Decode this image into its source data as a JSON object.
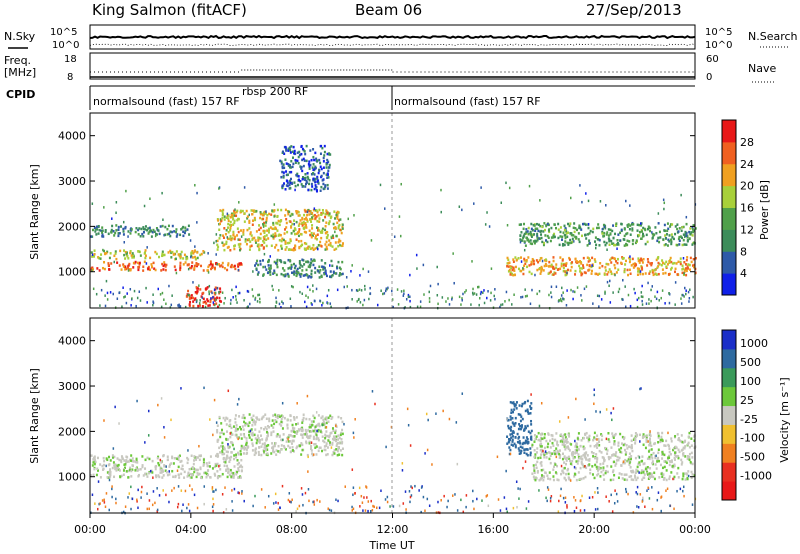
{
  "header": {
    "station": "King Salmon (fitACF)",
    "beam": "Beam 06",
    "date": "27/Sep/2013"
  },
  "nsky_panel": {
    "left_label": "N.Sky",
    "right_label": "N.Search",
    "left_ticks": [
      "10^5",
      "10^0"
    ],
    "right_ticks": [
      "10^5",
      "10^0"
    ]
  },
  "freq_panel": {
    "left_label_1": "Freq.",
    "left_label_2": "[MHz]",
    "right_label": "Nave",
    "left_ticks": [
      "18",
      "8"
    ],
    "right_ticks": [
      "60",
      "0"
    ]
  },
  "cpid_panel": {
    "label": "CPID",
    "segments": [
      {
        "text": "normalsound (fast) 157 RF",
        "start": 0,
        "end": 12
      },
      {
        "text": "rbsp 200 RF",
        "start": 6,
        "end": 12
      },
      {
        "text": "normalsound (fast) 157 RF",
        "start": 12,
        "end": 24
      }
    ]
  },
  "x_axis": {
    "label": "Time UT",
    "ticks": [
      "00:00",
      "04:00",
      "08:00",
      "12:00",
      "16:00",
      "20:00",
      "00:00"
    ]
  },
  "power_panel": {
    "ylabel": "Slant Range [km]",
    "yticks": [
      "1000",
      "2000",
      "3000",
      "4000"
    ],
    "colorbar_label": "Power [dB]",
    "colorbar_ticks": [
      "4",
      "8",
      "12",
      "16",
      "20",
      "24",
      "28"
    ],
    "colors": [
      "#1020e8",
      "#2e5aa8",
      "#3c8c5a",
      "#50a04a",
      "#a8d03a",
      "#f0a020",
      "#f06020",
      "#e81818"
    ]
  },
  "velocity_panel": {
    "ylabel": "Slant Range [km]",
    "yticks": [
      "1000",
      "2000",
      "3000",
      "4000"
    ],
    "colorbar_label": "Velocity [m s⁻¹]",
    "colorbar_ticks": [
      "1000",
      "500",
      "100",
      "25",
      "-25",
      "-100",
      "-500",
      "-1000"
    ],
    "colors": [
      "#1a2ec8",
      "#2e6aa0",
      "#3a9a5a",
      "#6cc83a",
      "#c8c8c0",
      "#f0c030",
      "#f08020",
      "#e83020",
      "#e81818"
    ]
  },
  "chart_data": {
    "type": "heatmap",
    "x_range_hours": [
      0,
      24
    ],
    "y_range_km": [
      200,
      4500
    ],
    "power_features_dB": [
      {
        "t": [
          0.0,
          6.0
        ],
        "range": [
          1050,
          1250
        ],
        "value": 26
      },
      {
        "t": [
          0.0,
          4.5
        ],
        "range": [
          1300,
          1500
        ],
        "value": 18
      },
      {
        "t": [
          0.0,
          4.0
        ],
        "range": [
          1800,
          2050
        ],
        "value": 10
      },
      {
        "t": [
          3.8,
          5.2
        ],
        "range": [
          250,
          700
        ],
        "value": 30
      },
      {
        "t": [
          5.0,
          10.0
        ],
        "range": [
          1500,
          2400
        ],
        "value": 20
      },
      {
        "t": [
          6.5,
          10.0
        ],
        "range": [
          900,
          1300
        ],
        "value": 10
      },
      {
        "t": [
          7.5,
          9.5
        ],
        "range": [
          2800,
          3800
        ],
        "value": 6
      },
      {
        "t": [
          16.5,
          24.0
        ],
        "range": [
          950,
          1350
        ],
        "value": 22
      },
      {
        "t": [
          17.0,
          24.0
        ],
        "range": [
          1600,
          2100
        ],
        "value": 12
      }
    ],
    "velocity_features_mps": [
      {
        "t": [
          0.0,
          6.0
        ],
        "range": [
          1000,
          1500
        ],
        "value": 0
      },
      {
        "t": [
          5.0,
          10.0
        ],
        "range": [
          1500,
          2400
        ],
        "value": 0
      },
      {
        "t": [
          16.5,
          17.5
        ],
        "range": [
          1500,
          2700
        ],
        "value": 150
      },
      {
        "t": [
          17.5,
          24.0
        ],
        "range": [
          950,
          2000
        ],
        "value": 0
      }
    ]
  }
}
